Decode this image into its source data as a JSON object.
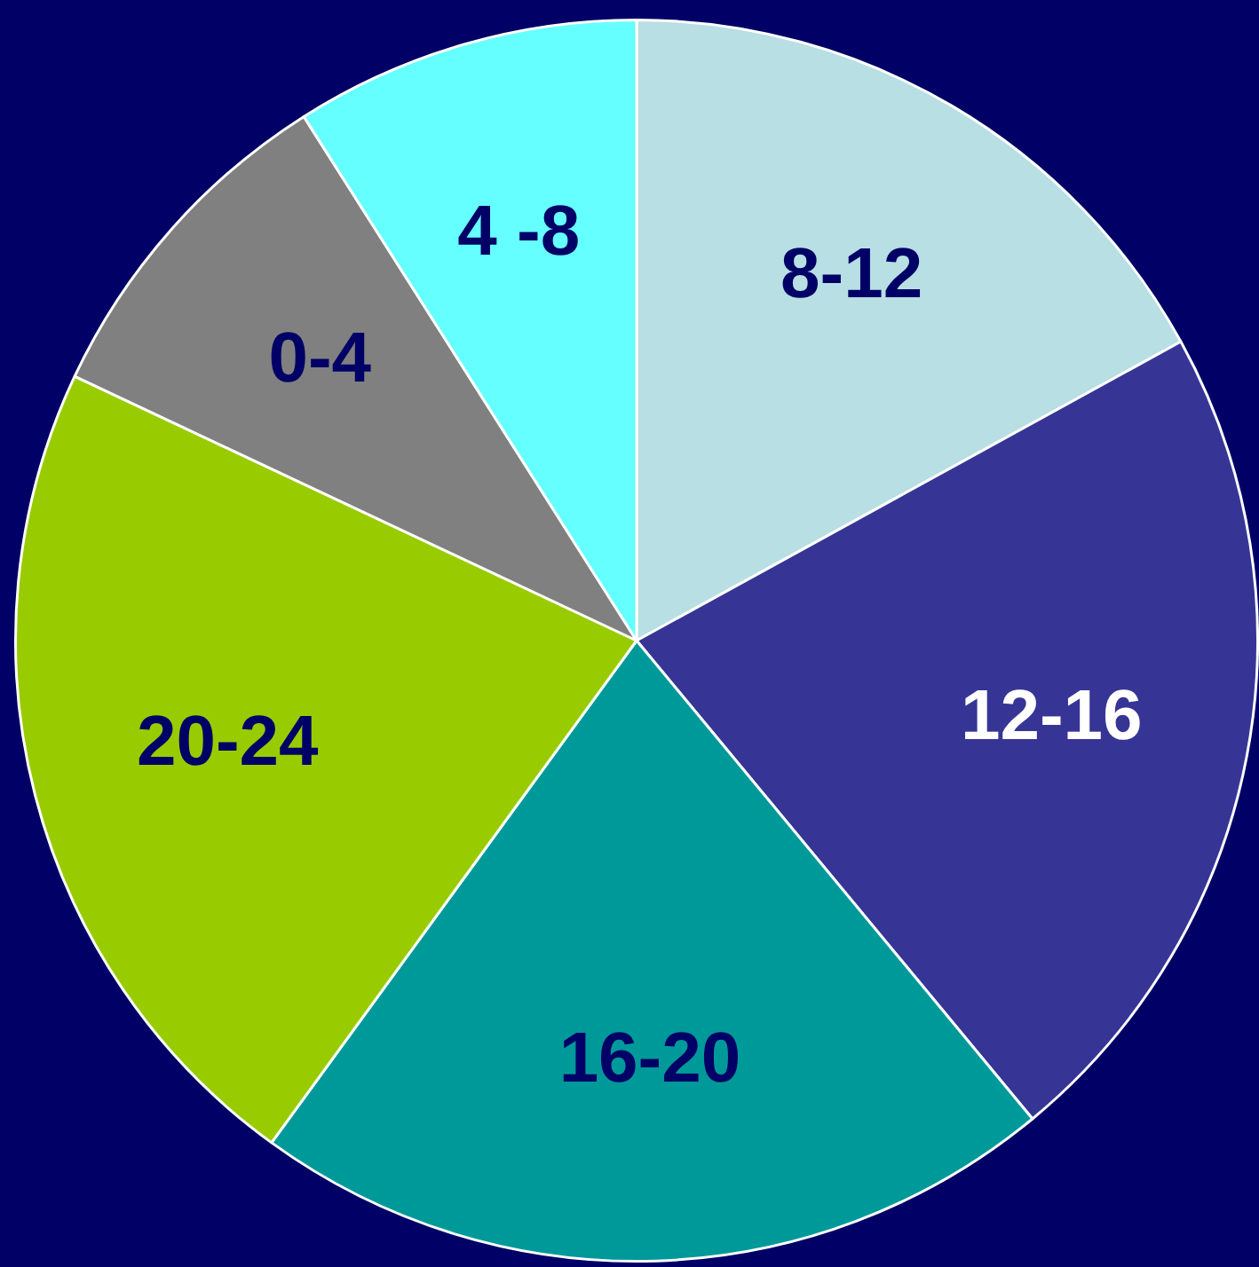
{
  "chart_data": {
    "type": "pie",
    "categories": [
      "8-12",
      "12-16",
      "16-20",
      "20-24",
      "0-4",
      "4 -8"
    ],
    "values": [
      17,
      22,
      21,
      22,
      9,
      9
    ],
    "colors": [
      "#b8dfe3",
      "#363596",
      "#009999",
      "#99cc00",
      "#808080",
      "#66ffff"
    ],
    "data_labels": false,
    "legend": false
  }
}
